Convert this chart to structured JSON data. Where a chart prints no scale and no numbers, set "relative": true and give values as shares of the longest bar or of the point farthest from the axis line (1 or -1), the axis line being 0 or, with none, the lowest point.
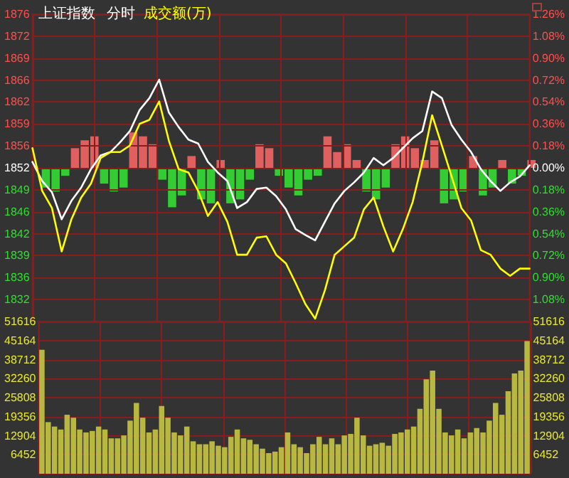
{
  "chart_data": [
    {
      "type": "line",
      "title": "上证指数",
      "subtitle": "分时",
      "annotations": [
        "成交额(万)"
      ],
      "grid": true,
      "tick_labels": "y",
      "categories": [
        null,
        null,
        null,
        null,
        null,
        null,
        null,
        null,
        null,
        null,
        null,
        null,
        null,
        null,
        null,
        null,
        null,
        null,
        null,
        null,
        null,
        null,
        null,
        null,
        null,
        null,
        null,
        null,
        null,
        null,
        null,
        null,
        null,
        null,
        null,
        null,
        null,
        null,
        null,
        null,
        null,
        null,
        null,
        null,
        null,
        null,
        null,
        null,
        null,
        null,
        null,
        null
      ],
      "series": [
        {
          "color": "#ffffff",
          "values": [
            1853.2,
            1850.3,
            1848.6,
            1844.5,
            1847.3,
            1849.3,
            1852.1,
            1854.2,
            1854.7,
            1856.2,
            1857.9,
            1861.1,
            1862.9,
            1865.7,
            1860.7,
            1858.5,
            1856.6,
            1856.0,
            1853.2,
            1851.6,
            1850.3,
            1846.2,
            1847.1,
            1849.1,
            1849.3,
            1848.0,
            1846.0,
            1843.0,
            1842.1,
            1841.3,
            1844.1,
            1846.9,
            1848.8,
            1850.1,
            1851.6,
            1853.8,
            1852.7,
            1853.8,
            1855.3,
            1856.8,
            1857.9,
            1863.9,
            1862.9,
            1858.8,
            1856.6,
            1854.7,
            1852.1,
            1850.3,
            1848.8,
            1850.1,
            1851.0,
            1852.7
          ]
        },
        {
          "color": "#ffff00",
          "values": [
            1855.3,
            1848.8,
            1846.2,
            1839.6,
            1844.5,
            1847.8,
            1849.9,
            1853.8,
            1854.7,
            1854.7,
            1855.7,
            1859.0,
            1859.6,
            1862.4,
            1856.4,
            1852.1,
            1851.6,
            1848.8,
            1845.0,
            1847.1,
            1844.1,
            1839.1,
            1839.1,
            1841.7,
            1841.9,
            1839.1,
            1837.8,
            1834.8,
            1831.6,
            1829.4,
            1833.7,
            1839.1,
            1840.4,
            1841.7,
            1846.0,
            1847.8,
            1843.4,
            1839.6,
            1843.0,
            1847.1,
            1853.2,
            1860.3,
            1855.7,
            1851.0,
            1846.2,
            1844.3,
            1839.8,
            1839.1,
            1837.0,
            1835.9,
            1837.0,
            1837.0
          ]
        }
      ],
      "ylim": [
        1828.96,
        1875.64
      ],
      "yticks": [
        {
          "value": 1875.64,
          "label": "1876"
        },
        {
          "value": 1872.3,
          "label": "1872"
        },
        {
          "value": 1868.97,
          "label": "1869"
        },
        {
          "value": 1865.64,
          "label": "1866"
        },
        {
          "value": 1862.3,
          "label": "1862"
        },
        {
          "value": 1858.97,
          "label": "1859"
        },
        {
          "value": 1855.63,
          "label": "1856"
        },
        {
          "value": 1852.3,
          "label": "1852"
        },
        {
          "value": 1848.97,
          "label": "1849"
        },
        {
          "value": 1845.63,
          "label": "1846"
        },
        {
          "value": 1842.3,
          "label": "1842"
        },
        {
          "value": 1838.96,
          "label": "1839"
        },
        {
          "value": 1835.63,
          "label": "1836"
        },
        {
          "value": 1832.3,
          "label": "1832"
        }
      ],
      "y2lim": [
        -1.26,
        1.26
      ],
      "y2ticks": [
        {
          "value": 1.26,
          "label": "1.26%"
        },
        {
          "value": 1.08,
          "label": "1.08%"
        },
        {
          "value": 0.9,
          "label": "0.90%"
        },
        {
          "value": 0.72,
          "label": "0.72%"
        },
        {
          "value": 0.54,
          "label": "0.54%"
        },
        {
          "value": 0.36,
          "label": "0.36%"
        },
        {
          "value": 0.18,
          "label": "0.18%"
        },
        {
          "value": 0,
          "label": "0.00%"
        },
        {
          "value": -0.18,
          "label": "0.18%"
        },
        {
          "value": -0.36,
          "label": "0.36%"
        },
        {
          "value": -0.54,
          "label": "0.54%"
        },
        {
          "value": -0.72,
          "label": "0.72%"
        },
        {
          "value": -0.9,
          "label": "0.90%"
        },
        {
          "value": -1.08,
          "label": "1.08%"
        }
      ]
    },
    {
      "type": "bar",
      "relative": true,
      "tick_labels": false,
      "categories": [
        null,
        null,
        null,
        null,
        null,
        null,
        null,
        null,
        null,
        null,
        null,
        null,
        null,
        null,
        null,
        null,
        null,
        null,
        null,
        null,
        null,
        null,
        null,
        null,
        null,
        null,
        null,
        null,
        null,
        null,
        null,
        null,
        null,
        null,
        null,
        null,
        null,
        null,
        null,
        null,
        null,
        null,
        null,
        null,
        null,
        null,
        null,
        null,
        null,
        null,
        null,
        null
      ],
      "values": [
        null,
        -0.5,
        -0.6,
        -0.2,
        0.5,
        0.7,
        0.8,
        -0.4,
        -0.6,
        -0.5,
        0.9,
        0.8,
        0.6,
        -0.3,
        -1.0,
        -0.7,
        0.3,
        -0.8,
        -0.9,
        0.2,
        -0.9,
        -0.8,
        -0.3,
        0.6,
        0.5,
        -0.2,
        -0.5,
        -0.7,
        -0.3,
        -0.2,
        0.8,
        0.4,
        0.6,
        0.2,
        -0.6,
        -0.8,
        -0.5,
        0.6,
        0.8,
        0.5,
        0.2,
        0.7,
        -0.9,
        -0.8,
        -0.6,
        0.3,
        -0.7,
        -0.5,
        0.2,
        -0.4,
        -0.2,
        0.2
      ],
      "colors": [
        "#33cc33",
        "#33cc33",
        "#33cc33",
        "#33cc33",
        "#e06060",
        "#e06060",
        "#e06060",
        "#33cc33",
        "#33cc33",
        "#33cc33",
        "#e06060",
        "#e06060",
        "#e06060",
        "#33cc33",
        "#33cc33",
        "#33cc33",
        "#e06060",
        "#33cc33",
        "#33cc33",
        "#e06060",
        "#33cc33",
        "#33cc33",
        "#33cc33",
        "#e06060",
        "#e06060",
        "#33cc33",
        "#33cc33",
        "#33cc33",
        "#33cc33",
        "#33cc33",
        "#e06060",
        "#e06060",
        "#e06060",
        "#e06060",
        "#33cc33",
        "#33cc33",
        "#33cc33",
        "#e06060",
        "#e06060",
        "#e06060",
        "#e06060",
        "#e06060",
        "#33cc33",
        "#33cc33",
        "#33cc33",
        "#e06060",
        "#33cc33",
        "#33cc33",
        "#e06060",
        "#33cc33",
        "#33cc33",
        "#e06060"
      ]
    },
    {
      "type": "bar",
      "grid": true,
      "tick_labels": "y",
      "color": "#b8b840",
      "categories": [
        null,
        null,
        null,
        null,
        null,
        null,
        null,
        null,
        null,
        null,
        null,
        null,
        null,
        null,
        null,
        null,
        null,
        null,
        null,
        null,
        null,
        null,
        null,
        null,
        null,
        null,
        null,
        null,
        null,
        null,
        null,
        null,
        null,
        null,
        null,
        null,
        null,
        null,
        null,
        null,
        null,
        null,
        null,
        null,
        null,
        null,
        null,
        null,
        null,
        null,
        null,
        null,
        null,
        null,
        null,
        null,
        null,
        null,
        null,
        null,
        null,
        null,
        null,
        null,
        null,
        null,
        null,
        null,
        null,
        null,
        null,
        null,
        null,
        null,
        null,
        null,
        null,
        null
      ],
      "values": [
        42000,
        17500,
        16000,
        15000,
        20000,
        19000,
        15000,
        14000,
        14500,
        16000,
        15000,
        12000,
        12000,
        13000,
        18000,
        24000,
        19000,
        14000,
        15000,
        23000,
        19000,
        14000,
        13000,
        16000,
        11000,
        10000,
        10000,
        11000,
        9500,
        9000,
        12500,
        15000,
        12000,
        11500,
        10000,
        8500,
        7000,
        7500,
        9000,
        14000,
        10000,
        9000,
        7000,
        10000,
        12500,
        10000,
        12000,
        10000,
        13000,
        13500,
        19000,
        13000,
        9500,
        10000,
        10500,
        9500,
        13500,
        14000,
        15000,
        16000,
        22000,
        32000,
        35000,
        22000,
        14000,
        13000,
        15000,
        12000,
        14000,
        15500,
        14000,
        18000,
        24000,
        20000,
        28000,
        34000,
        35000,
        45000
      ],
      "ylim": [
        0,
        51616
      ],
      "yticks": [
        6452,
        12904,
        19356,
        25808,
        32260,
        38712,
        45164,
        51616
      ],
      "y2lim": [
        0,
        51616
      ],
      "y2ticks": [
        6452,
        12904,
        19356,
        25808,
        32260,
        38712,
        45164,
        51616
      ]
    }
  ]
}
